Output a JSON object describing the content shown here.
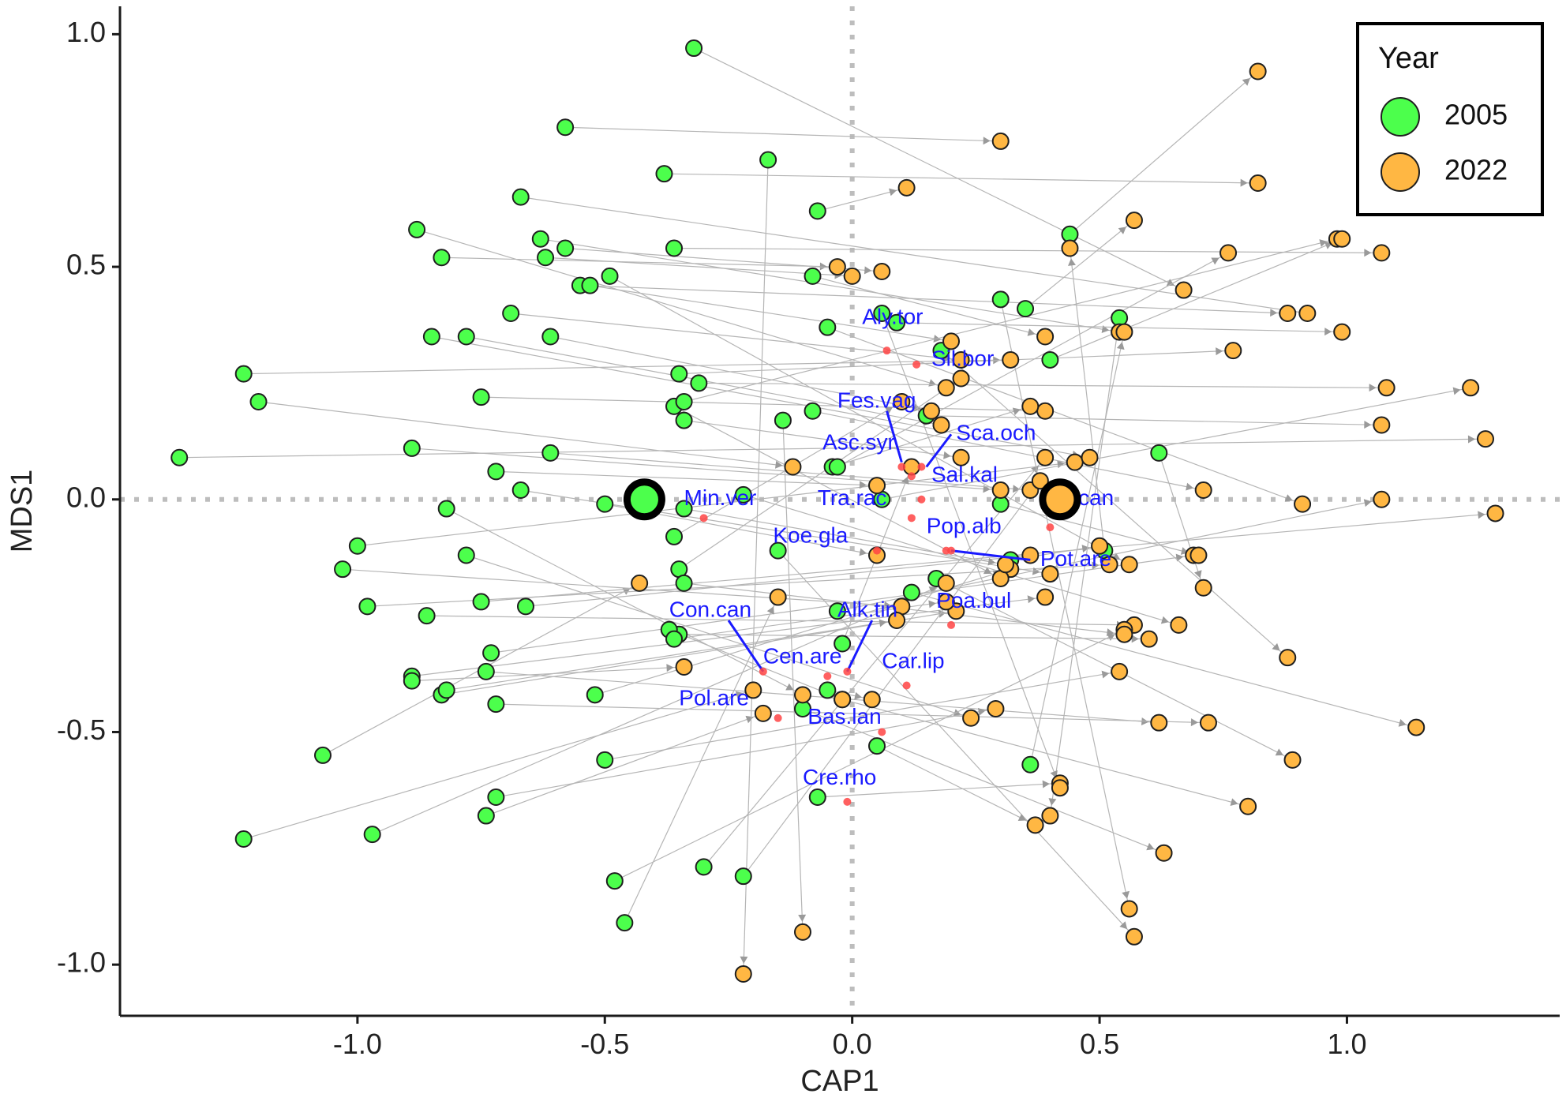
{
  "chart_data": {
    "type": "scatter",
    "title": "",
    "xlabel": "CAP1",
    "ylabel": "MDS1",
    "xlim": [
      -1.48,
      1.43
    ],
    "ylim": [
      -1.11,
      1.06
    ],
    "x_ticks": [
      -1.0,
      -0.5,
      0.0,
      0.5,
      1.0
    ],
    "y_ticks": [
      -1.0,
      -0.5,
      0.0,
      0.5,
      1.0
    ],
    "x_tick_labels": [
      "-1.0",
      "-0.5",
      "0.0",
      "0.5",
      "1.0"
    ],
    "y_tick_labels": [
      "-1.0",
      "-0.5",
      "0.0",
      "0.5",
      "1.0"
    ],
    "grid": false,
    "reference_lines": {
      "x": 0,
      "y": 0,
      "style": "dotted"
    },
    "legend": {
      "title": "Year",
      "placement": "top-right",
      "entries": [
        {
          "label": "2005",
          "color": "#4cff4c"
        },
        {
          "label": "2022",
          "color": "#ffb743"
        }
      ]
    },
    "colors": {
      "2005": "#4cff4c",
      "2022": "#ffb743",
      "species_point": "#ff4444",
      "species_text": "#1a1aff",
      "arrow": "#b5b5b5"
    },
    "centroids": [
      {
        "group": "2005",
        "x": -0.42,
        "y": 0.0
      },
      {
        "group": "2022",
        "x": 0.42,
        "y": 0.0
      }
    ],
    "pairs": [
      {
        "from": [
          -1.36,
          0.09
        ],
        "to": [
          1.28,
          0.13
        ]
      },
      {
        "from": [
          -1.23,
          0.27
        ],
        "to": [
          0.32,
          0.3
        ]
      },
      {
        "from": [
          -1.2,
          0.21
        ],
        "to": [
          -0.12,
          0.07
        ]
      },
      {
        "from": [
          -1.23,
          -0.73
        ],
        "to": [
          -0.2,
          -0.41
        ]
      },
      {
        "from": [
          -1.07,
          -0.55
        ],
        "to": [
          -0.43,
          -0.18
        ]
      },
      {
        "from": [
          -1.0,
          -0.1
        ],
        "to": [
          0.45,
          0.08
        ]
      },
      {
        "from": [
          -1.03,
          -0.15
        ],
        "to": [
          0.1,
          -0.23
        ]
      },
      {
        "from": [
          -0.98,
          -0.23
        ],
        "to": [
          0.52,
          -0.14
        ]
      },
      {
        "from": [
          -0.97,
          -0.72
        ],
        "to": [
          0.19,
          -0.18
        ]
      },
      {
        "from": [
          -0.89,
          0.11
        ],
        "to": [
          0.3,
          0.02
        ]
      },
      {
        "from": [
          -0.88,
          0.58
        ],
        "to": [
          0.19,
          0.24
        ]
      },
      {
        "from": [
          -0.85,
          0.35
        ],
        "to": [
          0.48,
          0.09
        ]
      },
      {
        "from": [
          -0.83,
          0.52
        ],
        "to": [
          -0.03,
          0.5
        ]
      },
      {
        "from": [
          -0.82,
          -0.02
        ],
        "to": [
          -0.1,
          -0.42
        ]
      },
      {
        "from": [
          -0.86,
          -0.25
        ],
        "to": [
          0.57,
          -0.27
        ]
      },
      {
        "from": [
          -0.89,
          -0.38
        ],
        "to": [
          0.39,
          -0.21
        ]
      },
      {
        "from": [
          -0.89,
          -0.39
        ],
        "to": [
          -0.34,
          -0.36
        ]
      },
      {
        "from": [
          -0.83,
          -0.42
        ],
        "to": [
          0.21,
          -0.24
        ]
      },
      {
        "from": [
          -0.82,
          -0.41
        ],
        "to": [
          0.09,
          -0.26
        ]
      },
      {
        "from": [
          -0.78,
          0.35
        ],
        "to": [
          0.18,
          0.16
        ]
      },
      {
        "from": [
          -0.78,
          -0.12
        ],
        "to": [
          0.24,
          -0.47
        ]
      },
      {
        "from": [
          -0.75,
          0.22
        ],
        "to": [
          0.39,
          0.19
        ]
      },
      {
        "from": [
          -0.75,
          -0.22
        ],
        "to": [
          1.3,
          -0.03
        ]
      },
      {
        "from": [
          -0.74,
          -0.37
        ],
        "to": [
          0.62,
          -0.48
        ]
      },
      {
        "from": [
          -0.72,
          -0.44
        ],
        "to": [
          0.72,
          -0.48
        ]
      },
      {
        "from": [
          -0.73,
          -0.33
        ],
        "to": [
          0.69,
          -0.12
        ]
      },
      {
        "from": [
          -0.72,
          0.06
        ],
        "to": [
          0.05,
          0.03
        ]
      },
      {
        "from": [
          -0.72,
          -0.64
        ],
        "to": [
          0.29,
          -0.45
        ]
      },
      {
        "from": [
          -0.74,
          -0.68
        ],
        "to": [
          -0.18,
          -0.46
        ]
      },
      {
        "from": [
          -0.69,
          0.4
        ],
        "to": [
          0.22,
          0.3
        ]
      },
      {
        "from": [
          -0.67,
          0.65
        ],
        "to": [
          0.92,
          0.4
        ]
      },
      {
        "from": [
          -0.67,
          0.02
        ],
        "to": [
          0.4,
          -0.16
        ]
      },
      {
        "from": [
          -0.66,
          -0.23
        ],
        "to": [
          0.36,
          -0.12
        ]
      },
      {
        "from": [
          -0.63,
          0.56
        ],
        "to": [
          0.54,
          0.36
        ]
      },
      {
        "from": [
          -0.62,
          0.52
        ],
        "to": [
          0.0,
          0.48
        ]
      },
      {
        "from": [
          -0.61,
          0.35
        ],
        "to": [
          0.16,
          0.19
        ]
      },
      {
        "from": [
          -0.61,
          0.1
        ],
        "to": [
          0.36,
          0.02
        ]
      },
      {
        "from": [
          -0.58,
          0.8
        ],
        "to": [
          0.3,
          0.77
        ]
      },
      {
        "from": [
          -0.58,
          0.54
        ],
        "to": [
          0.06,
          0.49
        ]
      },
      {
        "from": [
          -0.55,
          0.46
        ],
        "to": [
          0.88,
          0.4
        ]
      },
      {
        "from": [
          -0.53,
          0.46
        ],
        "to": [
          0.2,
          0.34
        ]
      },
      {
        "from": [
          -0.49,
          0.48
        ],
        "to": [
          0.56,
          -0.14
        ]
      },
      {
        "from": [
          -0.52,
          -0.42
        ],
        "to": [
          0.32,
          -0.15
        ]
      },
      {
        "from": [
          -0.5,
          -0.56
        ],
        "to": [
          0.54,
          -0.37
        ]
      },
      {
        "from": [
          -0.5,
          -0.01
        ],
        "to": [
          0.05,
          -0.12
        ]
      },
      {
        "from": [
          -0.48,
          -0.82
        ],
        "to": [
          0.55,
          -0.28
        ]
      },
      {
        "from": [
          -0.46,
          -0.91
        ],
        "to": [
          -0.15,
          -0.21
        ]
      },
      {
        "from": [
          -0.38,
          0.7
        ],
        "to": [
          0.82,
          0.68
        ]
      },
      {
        "from": [
          -0.36,
          0.54
        ],
        "to": [
          1.07,
          0.53
        ]
      },
      {
        "from": [
          -0.35,
          0.27
        ],
        "to": [
          0.77,
          0.32
        ]
      },
      {
        "from": [
          -0.36,
          0.2
        ],
        "to": [
          0.3,
          -0.17
        ]
      },
      {
        "from": [
          -0.36,
          -0.08
        ],
        "to": [
          0.1,
          0.21
        ]
      },
      {
        "from": [
          -0.35,
          -0.15
        ],
        "to": [
          0.22,
          0.26
        ]
      },
      {
        "from": [
          -0.35,
          -0.29
        ],
        "to": [
          0.6,
          -0.3
        ]
      },
      {
        "from": [
          -0.37,
          -0.28
        ],
        "to": [
          -0.02,
          -0.43
        ]
      },
      {
        "from": [
          -0.36,
          -0.3
        ],
        "to": [
          0.19,
          -0.22
        ]
      },
      {
        "from": [
          -0.34,
          -0.02
        ],
        "to": [
          0.31,
          -0.14
        ]
      },
      {
        "from": [
          -0.34,
          0.21
        ],
        "to": [
          0.98,
          0.56
        ]
      },
      {
        "from": [
          -0.34,
          0.17
        ],
        "to": [
          0.22,
          0.09
        ]
      },
      {
        "from": [
          -0.34,
          -0.18
        ],
        "to": [
          0.55,
          -0.29
        ]
      },
      {
        "from": [
          -0.32,
          0.97
        ],
        "to": [
          0.67,
          0.45
        ]
      },
      {
        "from": [
          -0.31,
          0.25
        ],
        "to": [
          1.08,
          0.24
        ]
      },
      {
        "from": [
          -0.3,
          -0.79
        ],
        "to": [
          0.39,
          0.09
        ]
      },
      {
        "from": [
          -0.22,
          -0.81
        ],
        "to": [
          0.38,
          0.04
        ]
      },
      {
        "from": [
          -0.22,
          0.01
        ],
        "to": [
          0.66,
          -0.27
        ]
      },
      {
        "from": [
          -0.17,
          0.73
        ],
        "to": [
          -0.22,
          -1.02
        ]
      },
      {
        "from": [
          -0.15,
          -0.11
        ],
        "to": [
          0.57,
          -0.94
        ]
      },
      {
        "from": [
          -0.14,
          0.17
        ],
        "to": [
          -0.1,
          -0.93
        ]
      },
      {
        "from": [
          -0.08,
          0.48
        ],
        "to": [
          0.39,
          0.35
        ]
      },
      {
        "from": [
          -0.08,
          0.19
        ],
        "to": [
          0.71,
          0.02
        ]
      },
      {
        "from": [
          -0.07,
          0.62
        ],
        "to": [
          0.11,
          0.67
        ]
      },
      {
        "from": [
          -0.07,
          -0.64
        ],
        "to": [
          0.42,
          -0.61
        ]
      },
      {
        "from": [
          -0.05,
          0.37
        ],
        "to": [
          0.91,
          -0.01
        ]
      },
      {
        "from": [
          -0.04,
          0.07
        ],
        "to": [
          0.36,
          0.2
        ]
      },
      {
        "from": [
          -0.03,
          0.07
        ],
        "to": [
          0.76,
          0.53
        ]
      },
      {
        "from": [
          -0.03,
          -0.24
        ],
        "to": [
          1.07,
          0.0
        ]
      },
      {
        "from": [
          -0.02,
          -0.31
        ],
        "to": [
          0.12,
          0.07
        ]
      },
      {
        "from": [
          -0.02,
          -0.43
        ],
        "to": [
          0.8,
          -0.66
        ]
      },
      {
        "from": [
          -0.05,
          -0.41
        ],
        "to": [
          0.04,
          -0.43
        ]
      },
      {
        "from": [
          -0.1,
          -0.45
        ],
        "to": [
          0.63,
          -0.76
        ]
      },
      {
        "from": [
          0.06,
          0.0
        ],
        "to": [
          1.25,
          0.24
        ]
      },
      {
        "from": [
          0.05,
          -0.53
        ],
        "to": [
          0.37,
          -0.7
        ]
      },
      {
        "from": [
          0.09,
          0.38
        ],
        "to": [
          0.99,
          0.36
        ]
      },
      {
        "from": [
          0.12,
          -0.2
        ],
        "to": [
          1.14,
          -0.49
        ]
      },
      {
        "from": [
          0.15,
          0.18
        ],
        "to": [
          1.07,
          0.16
        ]
      },
      {
        "from": [
          0.18,
          0.32
        ],
        "to": [
          0.88,
          -0.34
        ]
      },
      {
        "from": [
          0.17,
          -0.17
        ],
        "to": [
          0.89,
          -0.56
        ]
      },
      {
        "from": [
          0.3,
          -0.01
        ],
        "to": [
          0.7,
          -0.12
        ]
      },
      {
        "from": [
          0.32,
          -0.13
        ],
        "to": [
          0.5,
          -0.1
        ]
      },
      {
        "from": [
          0.35,
          0.41
        ],
        "to": [
          0.57,
          0.6
        ]
      },
      {
        "from": [
          0.4,
          0.3
        ],
        "to": [
          0.99,
          0.56
        ]
      },
      {
        "from": [
          0.44,
          0.57
        ],
        "to": [
          0.82,
          0.92
        ]
      },
      {
        "from": [
          0.54,
          0.39
        ],
        "to": [
          0.4,
          -0.68
        ]
      },
      {
        "from": [
          0.62,
          0.1
        ],
        "to": [
          0.71,
          -0.19
        ]
      },
      {
        "from": [
          0.36,
          -0.57
        ],
        "to": [
          0.55,
          0.36
        ]
      },
      {
        "from": [
          0.51,
          -0.11
        ],
        "to": [
          0.44,
          0.54
        ]
      },
      {
        "from": [
          0.3,
          0.43
        ],
        "to": [
          0.56,
          -0.88
        ]
      },
      {
        "from": [
          0.06,
          0.4
        ],
        "to": [
          0.42,
          -0.62
        ]
      }
    ],
    "species_points": [
      {
        "label": "Aly.tor",
        "x": 0.07,
        "y": 0.32,
        "label_x": 0.02,
        "label_y": 0.39
      },
      {
        "label": "Sil.bor",
        "x": 0.13,
        "y": 0.29,
        "label_x": 0.16,
        "label_y": 0.3
      },
      {
        "label": "Fes.vag",
        "x": 0.1,
        "y": 0.07,
        "label_x": -0.03,
        "label_y": 0.21
      },
      {
        "label": "Sca.och",
        "x": 0.14,
        "y": 0.07,
        "label_x": 0.21,
        "label_y": 0.14
      },
      {
        "label": "Asc.syr",
        "x": 0.12,
        "y": 0.05,
        "label_x": -0.06,
        "label_y": 0.12
      },
      {
        "label": "Sal.kal",
        "x": 0.14,
        "y": 0.0,
        "label_x": 0.16,
        "label_y": 0.05
      },
      {
        "label": "Min.ver",
        "x": -0.3,
        "y": -0.04,
        "label_x": -0.34,
        "label_y": 0.0
      },
      {
        "label": "Tra.rac",
        "x": 0.12,
        "y": -0.04,
        "label_x": -0.07,
        "label_y": 0.0
      },
      {
        "label": "Syr.can",
        "x": 0.4,
        "y": -0.06,
        "label_x": 0.38,
        "label_y": 0.0
      },
      {
        "label": "Pop.alb",
        "x": 0.19,
        "y": -0.11,
        "label_x": 0.15,
        "label_y": -0.06
      },
      {
        "label": "Koe.gla",
        "x": 0.05,
        "y": -0.11,
        "label_x": -0.16,
        "label_y": -0.08
      },
      {
        "label": "Pot.are",
        "x": 0.2,
        "y": -0.11,
        "label_x": 0.38,
        "label_y": -0.13
      },
      {
        "label": "Con.can",
        "x": -0.18,
        "y": -0.37,
        "label_x": -0.37,
        "label_y": -0.24
      },
      {
        "label": "Alk.tin",
        "x": -0.01,
        "y": -0.37,
        "label_x": -0.03,
        "label_y": -0.24
      },
      {
        "label": "Poa.bul",
        "x": 0.2,
        "y": -0.27,
        "label_x": 0.17,
        "label_y": -0.22
      },
      {
        "label": "Cen.are",
        "x": -0.05,
        "y": -0.38,
        "label_x": -0.18,
        "label_y": -0.34
      },
      {
        "label": "Car.lip",
        "x": 0.11,
        "y": -0.4,
        "label_x": 0.06,
        "label_y": -0.35
      },
      {
        "label": "Pol.are",
        "x": -0.15,
        "y": -0.47,
        "label_x": -0.35,
        "label_y": -0.43
      },
      {
        "label": "Bas.lan",
        "x": 0.06,
        "y": -0.5,
        "label_x": -0.09,
        "label_y": -0.47
      },
      {
        "label": "Cre.rho",
        "x": -0.01,
        "y": -0.65,
        "label_x": -0.1,
        "label_y": -0.6
      }
    ],
    "species_segments": [
      {
        "from": [
          0.07,
          0.19
        ],
        "to": [
          0.1,
          0.08
        ]
      },
      {
        "from": [
          0.2,
          0.14
        ],
        "to": [
          0.15,
          0.07
        ]
      },
      {
        "from": [
          -0.25,
          -0.26
        ],
        "to": [
          -0.18,
          -0.37
        ]
      },
      {
        "from": [
          0.04,
          -0.26
        ],
        "to": [
          -0.01,
          -0.37
        ]
      },
      {
        "from": [
          0.2,
          -0.11
        ],
        "to": [
          0.36,
          -0.13
        ]
      }
    ]
  }
}
